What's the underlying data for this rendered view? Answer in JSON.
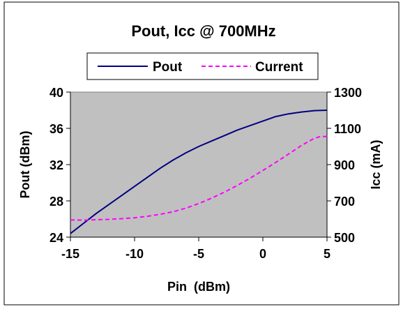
{
  "chart_data": {
    "type": "line",
    "title": "Pout, Icc @ 700MHz",
    "xlabel": "Pin  (dBm)",
    "ylabel_left": "Pout (dBm)",
    "ylabel_right": "Icc (mA)",
    "xlim": [
      -15,
      5
    ],
    "ylim_left": [
      24,
      40
    ],
    "ylim_right": [
      500,
      1300
    ],
    "x_ticks": [
      -15,
      -10,
      -5,
      0,
      5
    ],
    "y_ticks_left": [
      24,
      28,
      32,
      36,
      40
    ],
    "y_ticks_right": [
      500,
      700,
      900,
      1100,
      1300
    ],
    "grid": false,
    "plot_background": "#c0c0c0",
    "legend_position": "top",
    "series": [
      {
        "name": "Pout",
        "axis": "left",
        "color": "#000080",
        "style": "solid",
        "x": [
          -15,
          -14,
          -13,
          -12,
          -11,
          -10,
          -9,
          -8,
          -7,
          -6,
          -5,
          -4,
          -3,
          -2,
          -1,
          0,
          1,
          2,
          3,
          4,
          5
        ],
        "y": [
          24.4,
          25.5,
          26.6,
          27.6,
          28.6,
          29.6,
          30.6,
          31.6,
          32.5,
          33.3,
          34.0,
          34.6,
          35.2,
          35.8,
          36.3,
          36.8,
          37.3,
          37.6,
          37.8,
          37.95,
          38.0
        ]
      },
      {
        "name": "Current",
        "axis": "right",
        "color": "#ff00ff",
        "style": "dashed",
        "x": [
          -15,
          -14,
          -13,
          -12,
          -11,
          -10,
          -9,
          -8,
          -7,
          -6,
          -5,
          -4,
          -3,
          -2,
          -1,
          0,
          1,
          2,
          3,
          4,
          4.5,
          5
        ],
        "y": [
          595,
          594,
          596,
          598,
          602,
          607,
          615,
          626,
          640,
          660,
          685,
          715,
          748,
          785,
          825,
          868,
          912,
          958,
          1005,
          1045,
          1055,
          1055
        ]
      }
    ]
  }
}
